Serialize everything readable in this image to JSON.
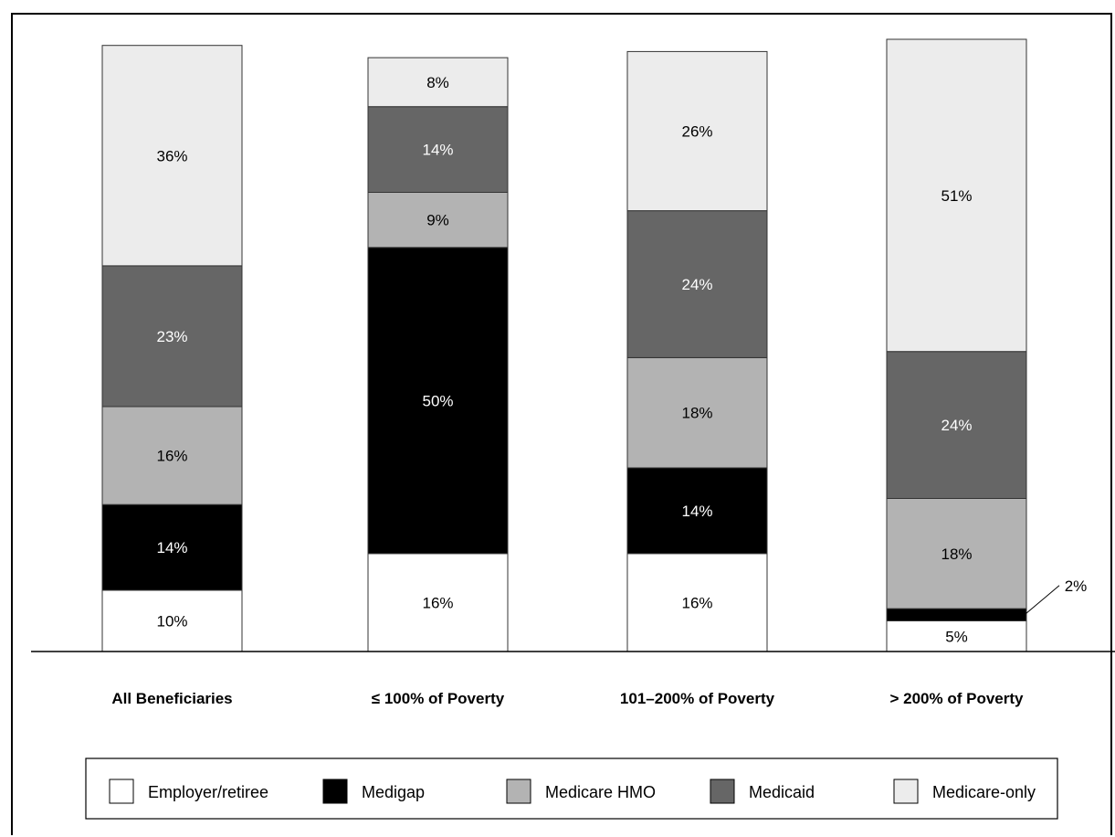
{
  "chart_data": {
    "type": "bar",
    "stacked": true,
    "orientation": "vertical",
    "categories": [
      "All Beneficiaries",
      "≤ 100% of Poverty",
      "101–200% of Poverty",
      "> 200% of Poverty"
    ],
    "series": [
      {
        "name": "Employer/retiree",
        "color": "#ffffff",
        "values": [
          10,
          16,
          16,
          5
        ],
        "labels": [
          "10%",
          "16%",
          "16%",
          "5%"
        ]
      },
      {
        "name": "Medigap",
        "color": "#000000",
        "values": [
          14,
          50,
          14,
          2
        ],
        "labels": [
          "14%",
          "50%",
          "14%",
          "2%"
        ]
      },
      {
        "name": "Medicare HMO",
        "color": "#b3b3b3",
        "values": [
          16,
          9,
          18,
          18
        ],
        "labels": [
          "16%",
          "9%",
          "18%",
          "18%"
        ]
      },
      {
        "name": "Medicaid",
        "color": "#666666",
        "values": [
          23,
          14,
          24,
          24
        ],
        "labels": [
          "23%",
          "14%",
          "24%",
          "24%"
        ]
      },
      {
        "name": "Medicare-only",
        "color": "#ececec",
        "values": [
          36,
          8,
          26,
          51
        ],
        "labels": [
          "36%",
          "8%",
          "26%",
          "51%"
        ]
      }
    ],
    "ylim": [
      0,
      100
    ],
    "grid": false,
    "legend": "bottom",
    "title": "",
    "xlabel": "",
    "ylabel": ""
  }
}
